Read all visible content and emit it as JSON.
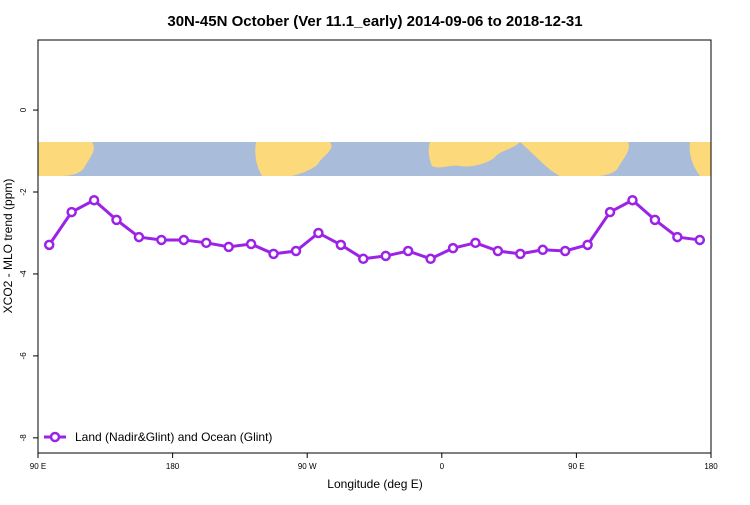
{
  "chart_data": {
    "type": "line",
    "title": "30N-45N October (Ver 11.1_early)   2014-09-06 to 2018-12-31",
    "x_label": "Longitude (deg E)",
    "y_label": "XCO2 - MLO trend (ppm)",
    "x": [
      97.5,
      112.5,
      127.5,
      142.5,
      157.5,
      172.5,
      187.5,
      202.5,
      217.5,
      232.5,
      247.5,
      262.5,
      277.5,
      292.5,
      307.5,
      322.5,
      337.5,
      352.5,
      367.5,
      382.5,
      397.5,
      412.5,
      427.5,
      442.5,
      457.5,
      472.5,
      487.5,
      502.5,
      517.5,
      532.5
    ],
    "series": [
      {
        "name": "Land (Nadir&Glint) and Ocean (Glint)",
        "color": "#9b22e6",
        "values": [
          -3.29,
          -2.49,
          -2.2,
          -2.68,
          -3.1,
          -3.17,
          -3.17,
          -3.24,
          -3.34,
          -3.27,
          -3.51,
          -3.44,
          -3.0,
          -3.29,
          -3.63,
          -3.56,
          -3.44,
          -3.63,
          -3.37,
          -3.24,
          -3.44,
          -3.51,
          -3.41,
          -3.44,
          -3.29,
          -2.49,
          -2.2,
          -2.68,
          -3.1,
          -3.17
        ]
      }
    ],
    "xlim": [
      90,
      540
    ],
    "xticks": [
      {
        "value": 90,
        "label": "90 E"
      },
      180,
      {
        "value": 270,
        "label": "90 W"
      },
      {
        "value": 360,
        "label": "0"
      },
      {
        "value": 450,
        "label": "90 E"
      },
      {
        "value": 540,
        "label": "180"
      }
    ],
    "ylim": [
      -8.37,
      1.71
    ],
    "yticks": [
      0,
      -2,
      -4,
      -6,
      -8
    ],
    "legend": "bottom-left"
  }
}
